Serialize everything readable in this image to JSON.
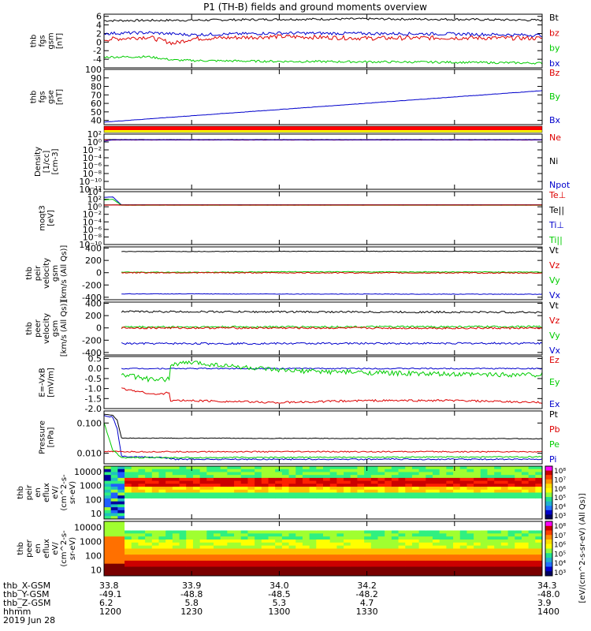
{
  "title": "P1 (TH-B) fields and ground moments overview",
  "chart_data": [
    {
      "type": "line",
      "ylabel_lines": [
        "thb",
        "fgs",
        "gsm",
        "[nT]"
      ],
      "ylim": [
        -6,
        6.5
      ],
      "yticks": [
        "6",
        "4",
        "2",
        "0",
        "-2",
        "-4"
      ],
      "ytick_values": [
        6,
        4,
        2,
        0,
        -2,
        -4
      ],
      "legend": [
        {
          "name": "Bt",
          "color": "#000000"
        },
        {
          "name": "bz",
          "color": "#dd0000"
        },
        {
          "name": "by",
          "color": "#00cc00"
        },
        {
          "name": "bx",
          "color": "#0000cc"
        }
      ],
      "series": [
        {
          "name": "Bt",
          "color": "#000000",
          "x": [
            33.8,
            33.9,
            34.0,
            34.1,
            34.2,
            34.3
          ],
          "values": [
            5.0,
            5.1,
            5.3,
            5.4,
            5.3,
            5.1
          ],
          "noise": 0.25
        },
        {
          "name": "bz",
          "color": "#dd0000",
          "x": [
            33.8,
            33.85,
            33.88,
            33.9,
            34.0,
            34.1,
            34.2,
            34.3
          ],
          "values": [
            0.6,
            1.2,
            -0.3,
            0.8,
            1.3,
            0.9,
            1.0,
            0.9
          ],
          "noise": 0.5
        },
        {
          "name": "by",
          "color": "#00cc00",
          "x": [
            33.8,
            33.85,
            33.88,
            33.9,
            34.0,
            34.1,
            34.2,
            34.3
          ],
          "values": [
            -3.5,
            -3.4,
            -4.2,
            -4.3,
            -4.5,
            -4.6,
            -4.7,
            -4.9
          ],
          "noise": 0.25
        },
        {
          "name": "bx",
          "color": "#0000cc",
          "x": [
            33.8,
            33.85,
            33.9,
            34.0,
            34.1,
            34.2,
            34.3
          ],
          "values": [
            2.0,
            2.2,
            1.7,
            2.1,
            2.0,
            1.9,
            1.6
          ],
          "noise": 0.35
        }
      ]
    },
    {
      "type": "line",
      "ylabel_lines": [
        "thb",
        "fgs",
        "gse",
        "[nT]"
      ],
      "ylim": [
        35,
        100
      ],
      "yticks": [
        "100",
        "90",
        "80",
        "70",
        "60",
        "50",
        "40"
      ],
      "ytick_values": [
        100,
        90,
        80,
        70,
        60,
        50,
        40
      ],
      "legend": [
        {
          "name": "Bz",
          "color": "#dd0000"
        },
        {
          "name": "By",
          "color": "#00cc00"
        },
        {
          "name": "Bx",
          "color": "#0000cc"
        }
      ],
      "series": [
        {
          "name": "Bx",
          "color": "#0000cc",
          "x": [
            33.8,
            34.3
          ],
          "values": [
            38,
            75
          ],
          "noise": 0.2
        }
      ]
    },
    {
      "type": "log-line",
      "ylabel_lines": [
        "Density",
        "[1/cc]",
        "[cm-3]"
      ],
      "ylim_exp": [
        -12,
        2
      ],
      "yticks": [
        "10²",
        "10⁰",
        "10⁻²",
        "10⁻⁴",
        "10⁻⁶",
        "10⁻⁸",
        "10⁻¹⁰",
        "10⁻¹²"
      ],
      "ytick_exps": [
        2,
        0,
        -2,
        -4,
        -6,
        -8,
        -10,
        -12
      ],
      "legend": [
        {
          "name": "Ne",
          "color": "#dd0000"
        },
        {
          "name": "Ni",
          "color": "#000000"
        },
        {
          "name": "Npot",
          "color": "#0000cc"
        }
      ],
      "series": [
        {
          "name": "Ni",
          "color": "#000000",
          "x": [
            33.8,
            34.3
          ],
          "values_exp": [
            0.6,
            0.6
          ],
          "noise": 0.02
        },
        {
          "name": "Ne",
          "color": "#dd0000",
          "x": [
            33.8,
            34.3
          ],
          "values_exp": [
            0.5,
            0.5
          ],
          "noise": 0.02
        },
        {
          "name": "Npot",
          "color": "#0000cc",
          "x": [
            33.8,
            33.81,
            34.3
          ],
          "values_exp": [
            0.2,
            0.55,
            0.55
          ],
          "noise": 0.02
        }
      ]
    },
    {
      "type": "log-line",
      "ylabel_lines": [
        "moqt3",
        "[eV]"
      ],
      "ylim_exp": [
        -10,
        4
      ],
      "yticks": [
        "10⁴",
        "10²",
        "10⁰",
        "10⁻²",
        "10⁻⁴",
        "10⁻⁶",
        "10⁻⁸",
        "10⁻¹⁰"
      ],
      "ytick_exps": [
        4,
        2,
        0,
        -2,
        -4,
        -6,
        -8,
        -10
      ],
      "legend": [
        {
          "name": "Te⊥",
          "color": "#dd0000"
        },
        {
          "name": "Te||",
          "color": "#000000"
        },
        {
          "name": "Ti⊥",
          "color": "#0000cc"
        },
        {
          "name": "Ti||",
          "color": "#00cc00"
        }
      ],
      "series": [
        {
          "name": "Ti⊥",
          "color": "#0000cc",
          "x": [
            33.8,
            33.81,
            33.82,
            34.3
          ],
          "values_exp": [
            2.5,
            2.6,
            0.5,
            0.5
          ],
          "noise": 0.02
        },
        {
          "name": "Ti||",
          "color": "#00cc00",
          "x": [
            33.8,
            33.81,
            33.82,
            34.3
          ],
          "values_exp": [
            1.8,
            2.0,
            0.4,
            0.4
          ],
          "noise": 0.02
        },
        {
          "name": "Te||",
          "color": "#000000",
          "x": [
            33.8,
            34.3
          ],
          "values_exp": [
            0.5,
            0.5
          ],
          "noise": 0.02
        },
        {
          "name": "Te⊥",
          "color": "#dd0000",
          "x": [
            33.8,
            34.3
          ],
          "values_exp": [
            0.45,
            0.45
          ],
          "noise": 0.02
        }
      ]
    },
    {
      "type": "line",
      "ylabel_lines": [
        "thb",
        "peir",
        "velocity",
        "gsm",
        "[km/s (All Qs)]"
      ],
      "ylim": [
        -440,
        420
      ],
      "yticks": [
        "400",
        "200",
        "0",
        "-200",
        "-400"
      ],
      "ytick_values": [
        400,
        200,
        0,
        -200,
        -400
      ],
      "legend": [
        {
          "name": "Vt",
          "color": "#000000"
        },
        {
          "name": "Vz",
          "color": "#dd0000"
        },
        {
          "name": "Vy",
          "color": "#00cc00"
        },
        {
          "name": "Vx",
          "color": "#0000cc"
        }
      ],
      "series": [
        {
          "name": "Vt",
          "color": "#000000",
          "x": [
            33.82,
            34.3
          ],
          "values": [
            345,
            350
          ],
          "noise": 4
        },
        {
          "name": "Vy",
          "color": "#00cc00",
          "x": [
            33.82,
            33.9,
            34.0,
            34.3
          ],
          "values": [
            10,
            5,
            15,
            10
          ],
          "noise": 6
        },
        {
          "name": "Vz",
          "color": "#dd0000",
          "x": [
            33.82,
            34.3
          ],
          "values": [
            0,
            -5
          ],
          "noise": 8
        },
        {
          "name": "Vx",
          "color": "#0000cc",
          "x": [
            33.82,
            34.3
          ],
          "values": [
            -345,
            -350
          ],
          "noise": 4
        }
      ]
    },
    {
      "type": "line",
      "ylabel_lines": [
        "thb",
        "peer",
        "velocity",
        "gsm",
        "[km/s (All Qs)]"
      ],
      "ylim": [
        -440,
        420
      ],
      "yticks": [
        "400",
        "200",
        "0",
        "-200",
        "-400"
      ],
      "ytick_values": [
        400,
        200,
        0,
        -200,
        -400
      ],
      "legend": [
        {
          "name": "Vt",
          "color": "#000000"
        },
        {
          "name": "Vz",
          "color": "#dd0000"
        },
        {
          "name": "Vy",
          "color": "#00cc00"
        },
        {
          "name": "Vx",
          "color": "#0000cc"
        }
      ],
      "series": [
        {
          "name": "Vt",
          "color": "#000000",
          "x": [
            33.82,
            34.3
          ],
          "values": [
            265,
            255
          ],
          "noise": 15
        },
        {
          "name": "Vy",
          "color": "#00cc00",
          "x": [
            33.82,
            34.3
          ],
          "values": [
            15,
            20
          ],
          "noise": 15
        },
        {
          "name": "Vz",
          "color": "#dd0000",
          "x": [
            33.82,
            34.3
          ],
          "values": [
            0,
            -5
          ],
          "noise": 15
        },
        {
          "name": "Vx",
          "color": "#0000cc",
          "x": [
            33.82,
            34.3
          ],
          "values": [
            -255,
            -250
          ],
          "noise": 15
        }
      ]
    },
    {
      "type": "line",
      "ylabel_lines": [
        "E=-VxB",
        "[mV/m]"
      ],
      "ylim": [
        -2.0,
        0.6
      ],
      "yticks": [
        "0.5",
        "0.0",
        "-0.5",
        "-1.0",
        "-1.5",
        "-2.0"
      ],
      "ytick_values": [
        0.5,
        0.0,
        -0.5,
        -1.0,
        -1.5,
        -2.0
      ],
      "legend": [
        {
          "name": "Ez",
          "color": "#dd0000"
        },
        {
          "name": "Ey",
          "color": "#00cc00"
        },
        {
          "name": "Ex",
          "color": "#0000cc"
        }
      ],
      "series": [
        {
          "name": "Ex",
          "color": "#0000cc",
          "x": [
            33.82,
            34.3
          ],
          "values": [
            0.0,
            0.0
          ],
          "noise": 0.03
        },
        {
          "name": "Ey",
          "color": "#00cc00",
          "x": [
            33.82,
            33.86,
            33.875,
            33.876,
            33.9,
            34.0,
            34.1,
            34.2,
            34.3
          ],
          "values": [
            -0.3,
            -0.6,
            -0.5,
            0.2,
            0.3,
            -0.1,
            -0.2,
            -0.3,
            -0.3
          ],
          "noise": 0.12
        },
        {
          "name": "Ez",
          "color": "#dd0000",
          "x": [
            33.82,
            33.86,
            33.875,
            33.876,
            33.9,
            34.0,
            34.1,
            34.2,
            34.3
          ],
          "values": [
            -1.0,
            -1.3,
            -1.2,
            -1.6,
            -1.6,
            -1.7,
            -1.6,
            -1.6,
            -1.7
          ],
          "noise": 0.05
        }
      ]
    },
    {
      "type": "log-line",
      "ylabel_lines": [
        "Pressure",
        "[nPa]"
      ],
      "ylim_exp": [
        -2.35,
        -0.6
      ],
      "yticks": [
        "0.100",
        "0.010"
      ],
      "ytick_exps": [
        -1,
        -2
      ],
      "legend": [
        {
          "name": "Pt",
          "color": "#000000"
        },
        {
          "name": "Pb",
          "color": "#dd0000"
        },
        {
          "name": "Pe",
          "color": "#00cc00"
        },
        {
          "name": "Pi",
          "color": "#0000cc"
        }
      ],
      "series": [
        {
          "name": "Pt",
          "color": "#000000",
          "x": [
            33.8,
            33.81,
            33.815,
            33.82,
            34.3
          ],
          "values_exp": [
            -0.7,
            -0.75,
            -0.9,
            -1.5,
            -1.52
          ],
          "noise": 0.01
        },
        {
          "name": "Pi",
          "color": "#0000cc",
          "x": [
            33.8,
            33.81,
            33.815,
            33.82,
            33.87,
            33.88,
            34.3
          ],
          "values_exp": [
            -0.75,
            -0.8,
            -1.2,
            -2.1,
            -2.15,
            -2.2,
            -2.2
          ],
          "noise": 0.02
        },
        {
          "name": "Pb",
          "color": "#dd0000",
          "x": [
            33.8,
            34.3
          ],
          "values_exp": [
            -1.95,
            -1.95
          ],
          "noise": 0.02
        },
        {
          "name": "Pe",
          "color": "#00cc00",
          "x": [
            33.8,
            33.81,
            33.82,
            34.3
          ],
          "values_exp": [
            -1.0,
            -1.9,
            -2.15,
            -2.12
          ],
          "noise": 0.02
        }
      ]
    },
    {
      "type": "heatmap",
      "ylabel_lines": [
        "thb",
        "peir",
        "en",
        "eflux",
        "eV/",
        "(cm^2-s-",
        "sr-eV)"
      ],
      "yticks": [
        "10000",
        "1000",
        "100",
        "10"
      ],
      "ytick_exps": [
        4,
        3,
        2,
        1
      ],
      "ylim_exp": [
        0.6,
        4.4
      ],
      "colorbar_ticks": [
        "10⁸",
        "10⁷",
        "10⁶",
        "10⁵",
        "10⁴",
        "10³"
      ],
      "colorbar_label": "[eV/(cm^2-s-sr-eV) (All Qs)]"
    },
    {
      "type": "heatmap",
      "ylabel_lines": [
        "thb",
        "peer",
        "en",
        "eflux",
        "eV/",
        "(cm^2-s-",
        "sr-eV)"
      ],
      "yticks": [
        "10000",
        "1000",
        "100",
        "10"
      ],
      "ytick_exps": [
        4,
        3,
        2,
        1
      ],
      "ylim_exp": [
        0.6,
        4.4
      ],
      "colorbar_ticks": [
        "10⁸",
        "10⁷",
        "10⁶",
        "10⁵",
        "10⁴",
        "10³"
      ],
      "colorbar_label": "[eV/(cm^2-s-sr-eV) (All Qs)]"
    }
  ],
  "xaxis": {
    "range": [
      33.8,
      34.3
    ],
    "row_labels": [
      "thb_X-GSM",
      "thb_Y-GSM",
      "thb_Z-GSM",
      "hhmm",
      "2019 Jun 28"
    ],
    "columns": [
      {
        "x": 33.8,
        "values": [
          "33.8",
          "-49.1",
          "6.2",
          "1200"
        ]
      },
      {
        "x": 33.9,
        "values": [
          "33.9",
          "-48.8",
          "5.8",
          "1230"
        ]
      },
      {
        "x": 34.0,
        "values": [
          "34.0",
          "-48.5",
          "5.3",
          "1300"
        ]
      },
      {
        "x": 34.1,
        "values": [
          "34.2",
          "-48.2",
          "4.7",
          "1330"
        ]
      },
      {
        "x": 34.2,
        "values": [
          "34.3",
          "-48.0",
          "3.9",
          "1400"
        ]
      }
    ]
  },
  "colors": {
    "bar_red": "#ff0000",
    "bar_yellow": "#ffff00"
  }
}
